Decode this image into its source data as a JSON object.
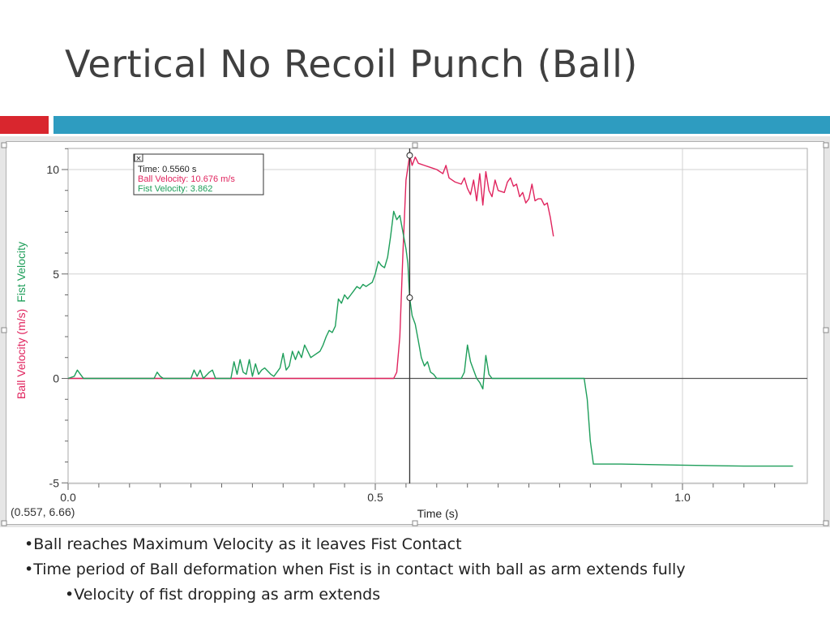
{
  "slide": {
    "title": "Vertical No Recoil Punch (Ball)",
    "accent_red": "#d9262e",
    "accent_teal": "#2e9cc0"
  },
  "chart_data": {
    "type": "line",
    "xlabel": "Time (s)",
    "ylabel_ball": "Ball Velocity (m/s)",
    "ylabel_fist": "Fist Velocity",
    "xlim": [
      0.0,
      1.2
    ],
    "ylim": [
      -5,
      11
    ],
    "x_ticks": [
      "0.0",
      "0.5",
      "1.0"
    ],
    "y_ticks": [
      "10",
      "5",
      "0",
      "-5"
    ],
    "grid": true,
    "cursor_readout": "(0.557, 6.66)",
    "tooltip": {
      "time": "Time: 0.5560 s",
      "ball": "Ball Velocity: 10.676 m/s",
      "fist": "Fist Velocity: 3.862"
    },
    "cursor_x": 0.556,
    "series": [
      {
        "name": "Ball Velocity",
        "color": "#e0245e",
        "points": [
          [
            0.0,
            0
          ],
          [
            0.53,
            0
          ],
          [
            0.535,
            0.3
          ],
          [
            0.54,
            2
          ],
          [
            0.545,
            6
          ],
          [
            0.55,
            9.5
          ],
          [
            0.556,
            10.676
          ],
          [
            0.56,
            10.2
          ],
          [
            0.565,
            10.6
          ],
          [
            0.57,
            10.3
          ],
          [
            0.58,
            10.2
          ],
          [
            0.59,
            10.1
          ],
          [
            0.6,
            10.0
          ],
          [
            0.61,
            9.8
          ],
          [
            0.615,
            10.2
          ],
          [
            0.62,
            9.6
          ],
          [
            0.63,
            9.4
          ],
          [
            0.64,
            9.3
          ],
          [
            0.645,
            9.6
          ],
          [
            0.65,
            9.1
          ],
          [
            0.655,
            8.8
          ],
          [
            0.66,
            9.5
          ],
          [
            0.665,
            8.5
          ],
          [
            0.67,
            9.8
          ],
          [
            0.675,
            8.3
          ],
          [
            0.68,
            9.9
          ],
          [
            0.685,
            9.0
          ],
          [
            0.69,
            8.7
          ],
          [
            0.695,
            9.5
          ],
          [
            0.7,
            9.0
          ],
          [
            0.71,
            8.9
          ],
          [
            0.715,
            9.4
          ],
          [
            0.72,
            9.6
          ],
          [
            0.725,
            9.2
          ],
          [
            0.73,
            9.3
          ],
          [
            0.735,
            8.7
          ],
          [
            0.74,
            8.9
          ],
          [
            0.745,
            8.4
          ],
          [
            0.75,
            8.6
          ],
          [
            0.755,
            9.3
          ],
          [
            0.76,
            8.5
          ],
          [
            0.765,
            8.6
          ],
          [
            0.77,
            8.6
          ],
          [
            0.775,
            8.3
          ],
          [
            0.78,
            8.4
          ],
          [
            0.785,
            7.7
          ],
          [
            0.79,
            6.8
          ]
        ]
      },
      {
        "name": "Fist Velocity",
        "color": "#1e9e5a",
        "points": [
          [
            0.0,
            0
          ],
          [
            0.01,
            0.1
          ],
          [
            0.015,
            0.4
          ],
          [
            0.02,
            0.2
          ],
          [
            0.025,
            0
          ],
          [
            0.14,
            0
          ],
          [
            0.145,
            0.3
          ],
          [
            0.15,
            0.1
          ],
          [
            0.155,
            0
          ],
          [
            0.2,
            0
          ],
          [
            0.205,
            0.4
          ],
          [
            0.21,
            0.1
          ],
          [
            0.215,
            0.4
          ],
          [
            0.22,
            0
          ],
          [
            0.23,
            0.3
          ],
          [
            0.235,
            0.4
          ],
          [
            0.24,
            0
          ],
          [
            0.265,
            0
          ],
          [
            0.27,
            0.8
          ],
          [
            0.275,
            0.2
          ],
          [
            0.28,
            0.9
          ],
          [
            0.285,
            0.3
          ],
          [
            0.29,
            0.2
          ],
          [
            0.295,
            0.9
          ],
          [
            0.3,
            0.1
          ],
          [
            0.305,
            0.7
          ],
          [
            0.31,
            0.2
          ],
          [
            0.315,
            0.4
          ],
          [
            0.32,
            0.5
          ],
          [
            0.33,
            0.2
          ],
          [
            0.335,
            0.1
          ],
          [
            0.34,
            0.3
          ],
          [
            0.345,
            0.5
          ],
          [
            0.35,
            1.2
          ],
          [
            0.355,
            0.4
          ],
          [
            0.36,
            0.6
          ],
          [
            0.365,
            1.3
          ],
          [
            0.37,
            0.9
          ],
          [
            0.375,
            1.3
          ],
          [
            0.38,
            1.0
          ],
          [
            0.385,
            1.6
          ],
          [
            0.39,
            1.3
          ],
          [
            0.395,
            1.0
          ],
          [
            0.4,
            1.1
          ],
          [
            0.41,
            1.3
          ],
          [
            0.415,
            1.6
          ],
          [
            0.42,
            2.0
          ],
          [
            0.425,
            2.3
          ],
          [
            0.43,
            2.2
          ],
          [
            0.435,
            2.5
          ],
          [
            0.44,
            3.8
          ],
          [
            0.445,
            3.6
          ],
          [
            0.45,
            4.0
          ],
          [
            0.455,
            3.8
          ],
          [
            0.46,
            4.0
          ],
          [
            0.465,
            4.2
          ],
          [
            0.47,
            4.4
          ],
          [
            0.475,
            4.3
          ],
          [
            0.48,
            4.5
          ],
          [
            0.485,
            4.4
          ],
          [
            0.49,
            4.5
          ],
          [
            0.495,
            4.6
          ],
          [
            0.5,
            5.0
          ],
          [
            0.505,
            5.6
          ],
          [
            0.51,
            5.4
          ],
          [
            0.515,
            5.3
          ],
          [
            0.52,
            5.8
          ],
          [
            0.525,
            6.8
          ],
          [
            0.53,
            8.0
          ],
          [
            0.535,
            7.6
          ],
          [
            0.54,
            7.8
          ],
          [
            0.545,
            7.0
          ],
          [
            0.55,
            6.2
          ],
          [
            0.553,
            5.5
          ],
          [
            0.556,
            3.862
          ],
          [
            0.56,
            3.0
          ],
          [
            0.565,
            2.6
          ],
          [
            0.57,
            1.8
          ],
          [
            0.575,
            1.0
          ],
          [
            0.58,
            0.6
          ],
          [
            0.585,
            0.8
          ],
          [
            0.59,
            0.3
          ],
          [
            0.595,
            0.2
          ],
          [
            0.6,
            0
          ],
          [
            0.64,
            0
          ],
          [
            0.645,
            0.3
          ],
          [
            0.65,
            1.6
          ],
          [
            0.655,
            0.8
          ],
          [
            0.66,
            0.4
          ],
          [
            0.665,
            0
          ],
          [
            0.67,
            -0.2
          ],
          [
            0.675,
            -0.5
          ],
          [
            0.68,
            1.1
          ],
          [
            0.685,
            0.2
          ],
          [
            0.69,
            0
          ],
          [
            0.84,
            0
          ],
          [
            0.845,
            -1
          ],
          [
            0.85,
            -3
          ],
          [
            0.855,
            -4.1
          ],
          [
            0.9,
            -4.1
          ],
          [
            1.0,
            -4.15
          ],
          [
            1.1,
            -4.2
          ],
          [
            1.18,
            -4.2
          ]
        ]
      }
    ]
  },
  "bullets": [
    "•Ball reaches Maximum Velocity as it leaves Fist Contact",
    "•Time period of Ball deformation when Fist is in contact with ball as arm extends fully",
    "•Velocity of fist dropping as arm extends"
  ]
}
